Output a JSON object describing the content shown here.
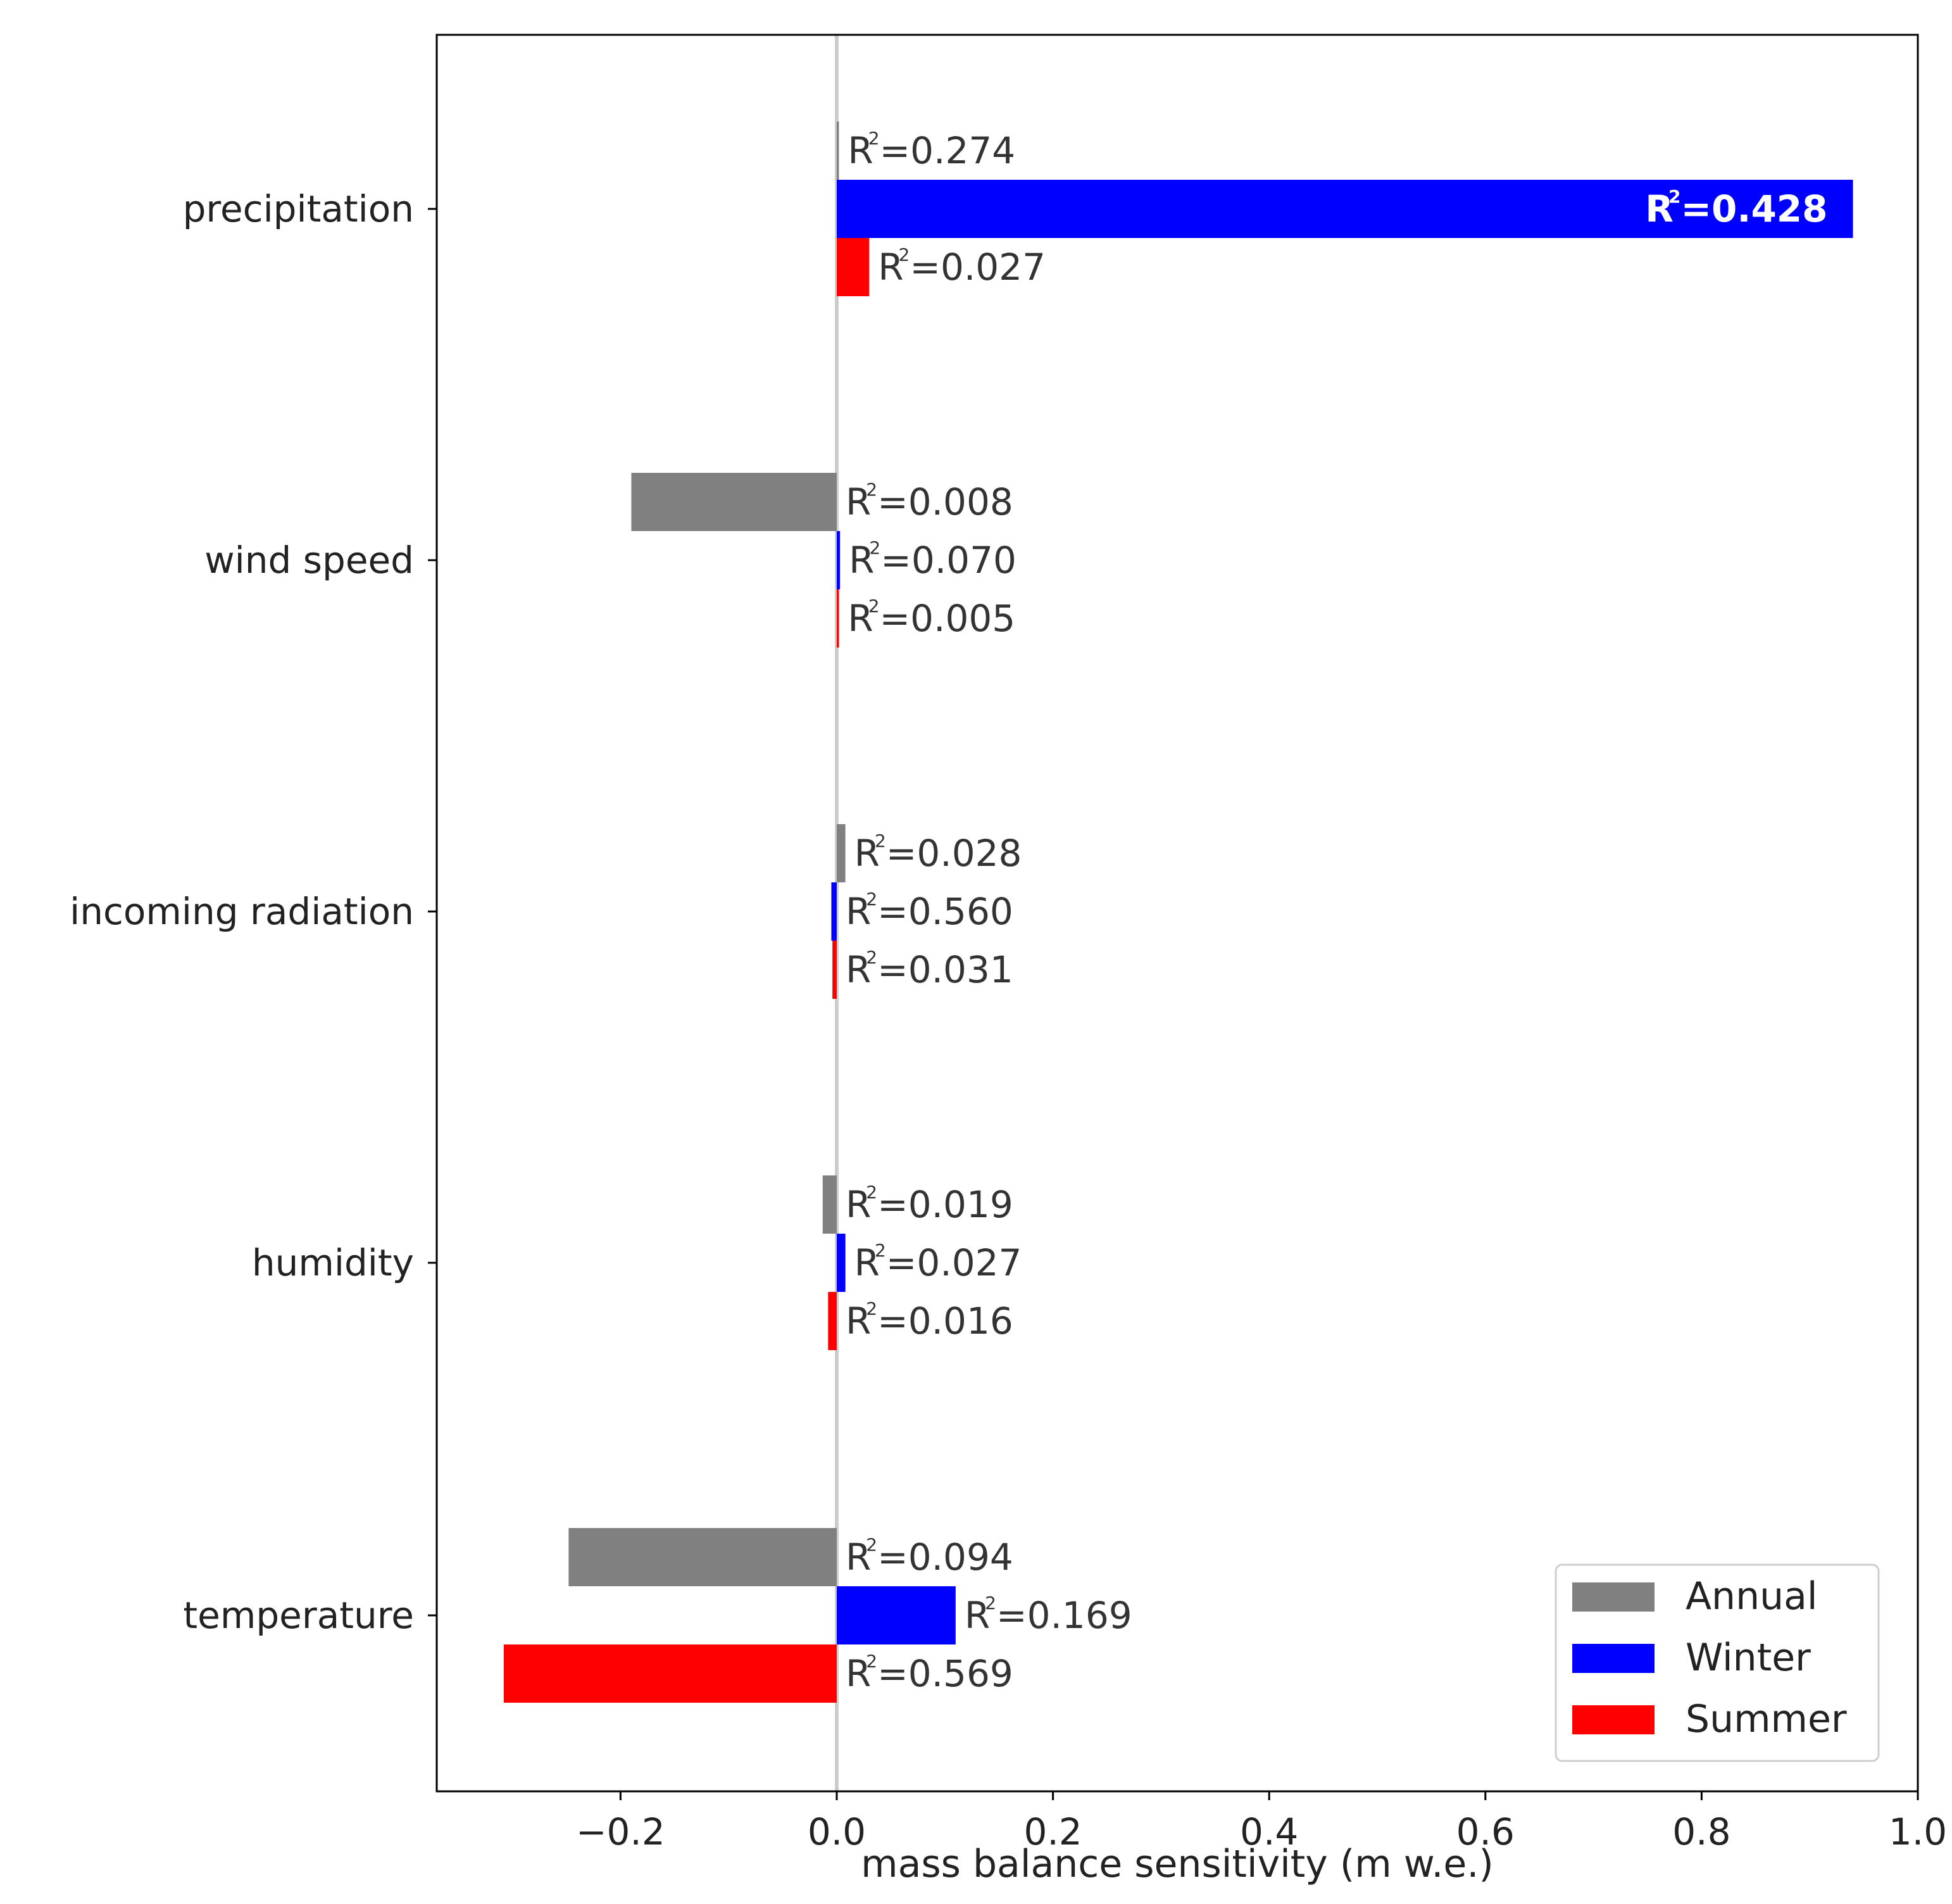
{
  "chart_data": {
    "type": "bar",
    "orientation": "horizontal",
    "title": "",
    "xlabel": "mass balance sensitivity (m w.e.)",
    "ylabel": "",
    "xlim": [
      -0.37,
      1.0
    ],
    "xticks": [
      -0.2,
      0.0,
      0.2,
      0.4,
      0.6,
      0.8,
      1.0
    ],
    "xtick_labels": [
      "−0.2",
      "0.0",
      "0.2",
      "0.4",
      "0.6",
      "0.8",
      "1.0"
    ],
    "categories": [
      "precipitation",
      "wind speed",
      "incoming radiation",
      "humidity",
      "temperature"
    ],
    "series": [
      {
        "name": "Annual",
        "color": "#808080",
        "values": [
          0.002,
          -0.19,
          0.008,
          -0.013,
          -0.248
        ],
        "r2": [
          "0.274",
          "0.008",
          "0.028",
          "0.019",
          "0.094"
        ]
      },
      {
        "name": "Winter",
        "color": "#0000ff",
        "values": [
          0.94,
          0.003,
          -0.005,
          0.008,
          0.11
        ],
        "r2": [
          "0.428",
          "0.070",
          "0.560",
          "0.027",
          "0.169"
        ]
      },
      {
        "name": "Summer",
        "color": "#ff0000",
        "values": [
          0.03,
          0.002,
          -0.004,
          -0.008,
          -0.308
        ],
        "r2": [
          "0.027",
          "0.005",
          "0.031",
          "0.016",
          "0.569"
        ]
      }
    ],
    "r2_prefix": "R",
    "r2_superscript": "2",
    "legend": {
      "position": "lower-right",
      "entries": [
        "Annual",
        "Winter",
        "Summer"
      ]
    },
    "zero_line": true,
    "grid": false
  }
}
